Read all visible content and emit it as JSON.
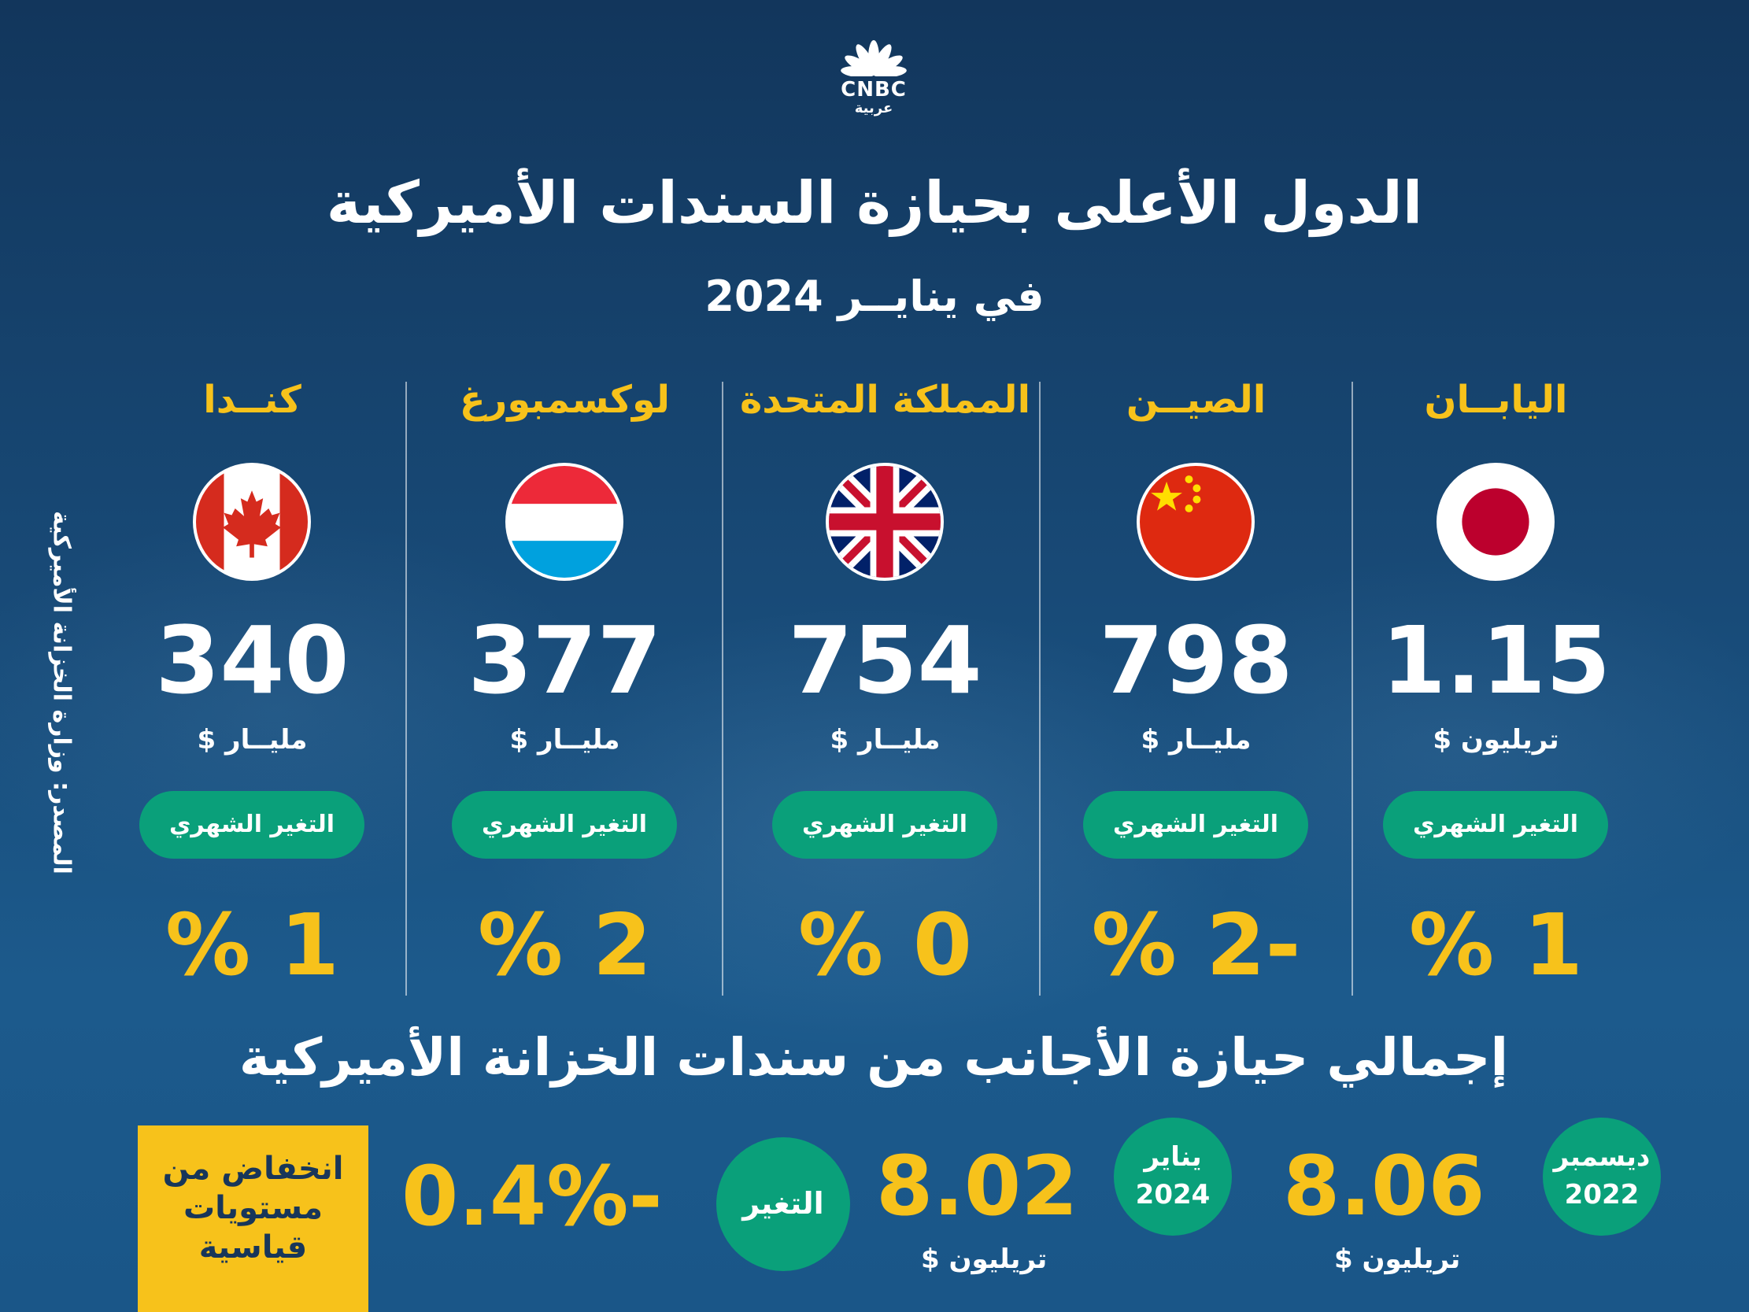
{
  "logo": {
    "brand": "CNBC",
    "arabic": "عربية"
  },
  "title": "الدول الأعلى بحيازة السندات الأميركية",
  "subtitle": "في ينايــر 2024",
  "source": "المصدر: وزارة الخزانة الأميركية",
  "pill_label": "التغير الشهري",
  "countries": [
    {
      "name": "اليابــان",
      "flag": "japan-flag",
      "amount": "1.15",
      "unit": "تريليون $",
      "change": "1 %"
    },
    {
      "name": "الصيــن",
      "flag": "china-flag",
      "amount": "798",
      "unit": "مليــار $",
      "change": "-2 %"
    },
    {
      "name": "المملكة المتحدة",
      "flag": "uk-flag",
      "amount": "754",
      "unit": "مليــار $",
      "change": "0 %"
    },
    {
      "name": "لوكسمبورغ",
      "flag": "luxembourg-flag",
      "amount": "377",
      "unit": "مليــار $",
      "change": "2 %"
    },
    {
      "name": "كنــدا",
      "flag": "canada-flag",
      "amount": "340",
      "unit": "مليــار $",
      "change": "1 %"
    }
  ],
  "totals": {
    "title": "إجمالي حيازة الأجانب من سندات الخزانة الأميركية",
    "dec": {
      "month": "ديسمبر",
      "year": "2022",
      "value": "8.06",
      "unit": "تريليون $"
    },
    "jan": {
      "month": "يناير",
      "year": "2024",
      "value": "8.02",
      "unit": "تريليون $"
    },
    "change_label": "التغير",
    "change_value": "-0.4%",
    "note_lines": [
      "انخفاض من",
      "مستويات",
      "قياسية"
    ]
  },
  "colors": {
    "accent_yellow": "#f7c21b",
    "accent_green": "#0aa07a",
    "bg_blue": "#184a77"
  }
}
